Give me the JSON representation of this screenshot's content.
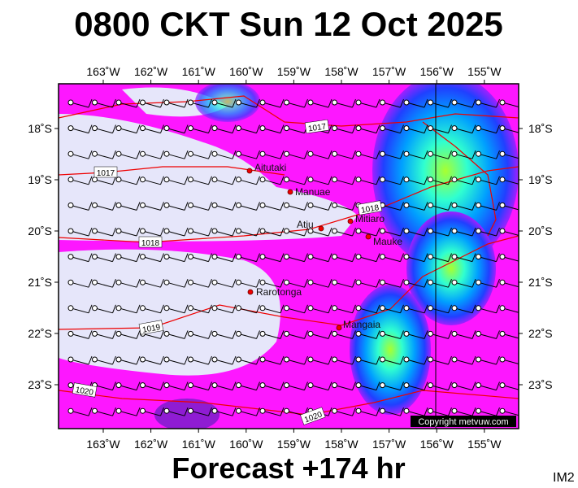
{
  "header": {
    "title": "0800 CKT Sun 12 Oct 2025"
  },
  "footer": {
    "forecast": "Forecast +174 hr",
    "code": "IM2"
  },
  "map": {
    "lon_labels": [
      "163˚W",
      "162˚W",
      "161˚W",
      "160˚W",
      "159˚W",
      "158˚W",
      "157˚W",
      "156˚W",
      "155˚W"
    ],
    "lat_labels": [
      "18˚S",
      "19˚S",
      "20˚S",
      "21˚S",
      "22˚S",
      "23˚S"
    ],
    "places": [
      "Aitutaki",
      "Manuae",
      "Atiu",
      "Mitiaro",
      "Mauke",
      "Rarotonga",
      "Mangaia"
    ],
    "isobar_labels": [
      "1017",
      "1017",
      "1018",
      "1018",
      "1019",
      "1020",
      "1020"
    ],
    "copyright": "Copyright metvuw.com"
  }
}
